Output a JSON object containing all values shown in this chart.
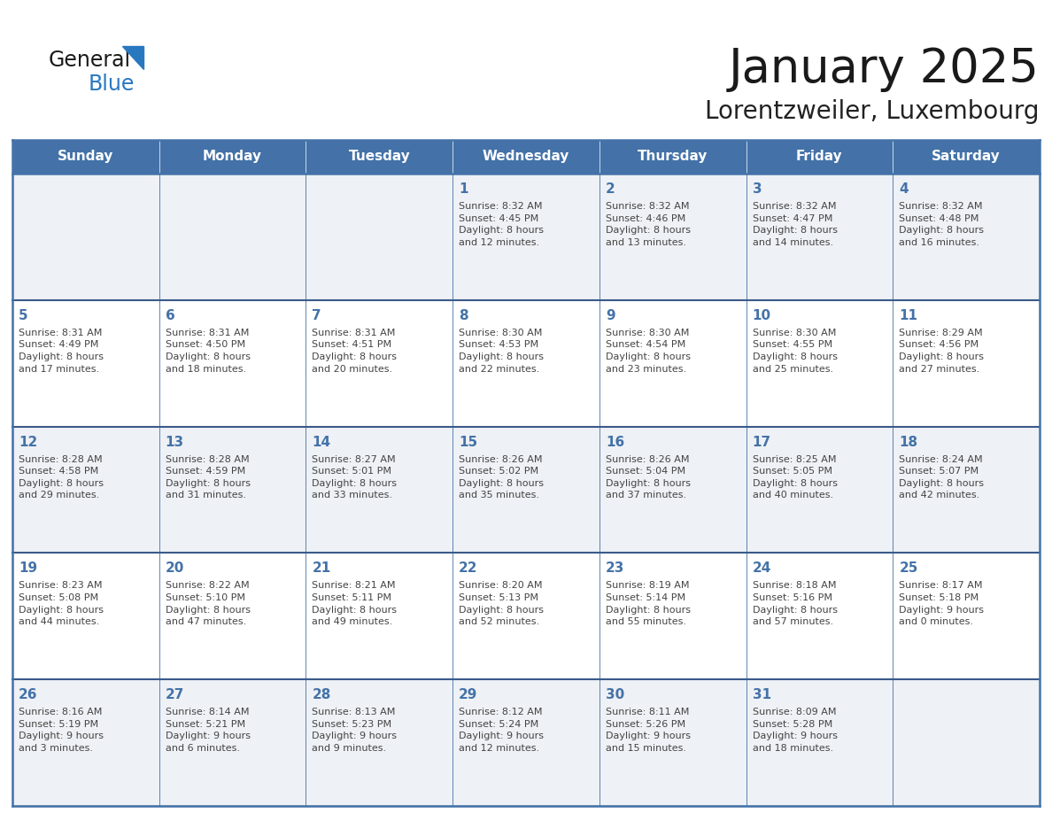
{
  "title": "January 2025",
  "subtitle": "Lorentzweiler, Luxembourg",
  "days_of_week": [
    "Sunday",
    "Monday",
    "Tuesday",
    "Wednesday",
    "Thursday",
    "Friday",
    "Saturday"
  ],
  "header_bg": "#4472a8",
  "header_text": "#ffffff",
  "cell_bg_odd": "#eef1f5",
  "cell_bg_even": "#ffffff",
  "row_line_color": "#3a5a8a",
  "col_line_color": "#4472a8",
  "outer_line_color": "#4472a8",
  "day_number_color": "#4472a8",
  "cell_text_color": "#444444",
  "title_color": "#1a1a1a",
  "subtitle_color": "#222222",
  "logo_general_color": "#1a1a1a",
  "logo_blue_color": "#2878c0",
  "logo_triangle_color": "#2878c0",
  "weeks": [
    [
      {
        "day": null,
        "info": null
      },
      {
        "day": null,
        "info": null
      },
      {
        "day": null,
        "info": null
      },
      {
        "day": 1,
        "info": "Sunrise: 8:32 AM\nSunset: 4:45 PM\nDaylight: 8 hours\nand 12 minutes."
      },
      {
        "day": 2,
        "info": "Sunrise: 8:32 AM\nSunset: 4:46 PM\nDaylight: 8 hours\nand 13 minutes."
      },
      {
        "day": 3,
        "info": "Sunrise: 8:32 AM\nSunset: 4:47 PM\nDaylight: 8 hours\nand 14 minutes."
      },
      {
        "day": 4,
        "info": "Sunrise: 8:32 AM\nSunset: 4:48 PM\nDaylight: 8 hours\nand 16 minutes."
      }
    ],
    [
      {
        "day": 5,
        "info": "Sunrise: 8:31 AM\nSunset: 4:49 PM\nDaylight: 8 hours\nand 17 minutes."
      },
      {
        "day": 6,
        "info": "Sunrise: 8:31 AM\nSunset: 4:50 PM\nDaylight: 8 hours\nand 18 minutes."
      },
      {
        "day": 7,
        "info": "Sunrise: 8:31 AM\nSunset: 4:51 PM\nDaylight: 8 hours\nand 20 minutes."
      },
      {
        "day": 8,
        "info": "Sunrise: 8:30 AM\nSunset: 4:53 PM\nDaylight: 8 hours\nand 22 minutes."
      },
      {
        "day": 9,
        "info": "Sunrise: 8:30 AM\nSunset: 4:54 PM\nDaylight: 8 hours\nand 23 minutes."
      },
      {
        "day": 10,
        "info": "Sunrise: 8:30 AM\nSunset: 4:55 PM\nDaylight: 8 hours\nand 25 minutes."
      },
      {
        "day": 11,
        "info": "Sunrise: 8:29 AM\nSunset: 4:56 PM\nDaylight: 8 hours\nand 27 minutes."
      }
    ],
    [
      {
        "day": 12,
        "info": "Sunrise: 8:28 AM\nSunset: 4:58 PM\nDaylight: 8 hours\nand 29 minutes."
      },
      {
        "day": 13,
        "info": "Sunrise: 8:28 AM\nSunset: 4:59 PM\nDaylight: 8 hours\nand 31 minutes."
      },
      {
        "day": 14,
        "info": "Sunrise: 8:27 AM\nSunset: 5:01 PM\nDaylight: 8 hours\nand 33 minutes."
      },
      {
        "day": 15,
        "info": "Sunrise: 8:26 AM\nSunset: 5:02 PM\nDaylight: 8 hours\nand 35 minutes."
      },
      {
        "day": 16,
        "info": "Sunrise: 8:26 AM\nSunset: 5:04 PM\nDaylight: 8 hours\nand 37 minutes."
      },
      {
        "day": 17,
        "info": "Sunrise: 8:25 AM\nSunset: 5:05 PM\nDaylight: 8 hours\nand 40 minutes."
      },
      {
        "day": 18,
        "info": "Sunrise: 8:24 AM\nSunset: 5:07 PM\nDaylight: 8 hours\nand 42 minutes."
      }
    ],
    [
      {
        "day": 19,
        "info": "Sunrise: 8:23 AM\nSunset: 5:08 PM\nDaylight: 8 hours\nand 44 minutes."
      },
      {
        "day": 20,
        "info": "Sunrise: 8:22 AM\nSunset: 5:10 PM\nDaylight: 8 hours\nand 47 minutes."
      },
      {
        "day": 21,
        "info": "Sunrise: 8:21 AM\nSunset: 5:11 PM\nDaylight: 8 hours\nand 49 minutes."
      },
      {
        "day": 22,
        "info": "Sunrise: 8:20 AM\nSunset: 5:13 PM\nDaylight: 8 hours\nand 52 minutes."
      },
      {
        "day": 23,
        "info": "Sunrise: 8:19 AM\nSunset: 5:14 PM\nDaylight: 8 hours\nand 55 minutes."
      },
      {
        "day": 24,
        "info": "Sunrise: 8:18 AM\nSunset: 5:16 PM\nDaylight: 8 hours\nand 57 minutes."
      },
      {
        "day": 25,
        "info": "Sunrise: 8:17 AM\nSunset: 5:18 PM\nDaylight: 9 hours\nand 0 minutes."
      }
    ],
    [
      {
        "day": 26,
        "info": "Sunrise: 8:16 AM\nSunset: 5:19 PM\nDaylight: 9 hours\nand 3 minutes."
      },
      {
        "day": 27,
        "info": "Sunrise: 8:14 AM\nSunset: 5:21 PM\nDaylight: 9 hours\nand 6 minutes."
      },
      {
        "day": 28,
        "info": "Sunrise: 8:13 AM\nSunset: 5:23 PM\nDaylight: 9 hours\nand 9 minutes."
      },
      {
        "day": 29,
        "info": "Sunrise: 8:12 AM\nSunset: 5:24 PM\nDaylight: 9 hours\nand 12 minutes."
      },
      {
        "day": 30,
        "info": "Sunrise: 8:11 AM\nSunset: 5:26 PM\nDaylight: 9 hours\nand 15 minutes."
      },
      {
        "day": 31,
        "info": "Sunrise: 8:09 AM\nSunset: 5:28 PM\nDaylight: 9 hours\nand 18 minutes."
      },
      {
        "day": null,
        "info": null
      }
    ]
  ]
}
